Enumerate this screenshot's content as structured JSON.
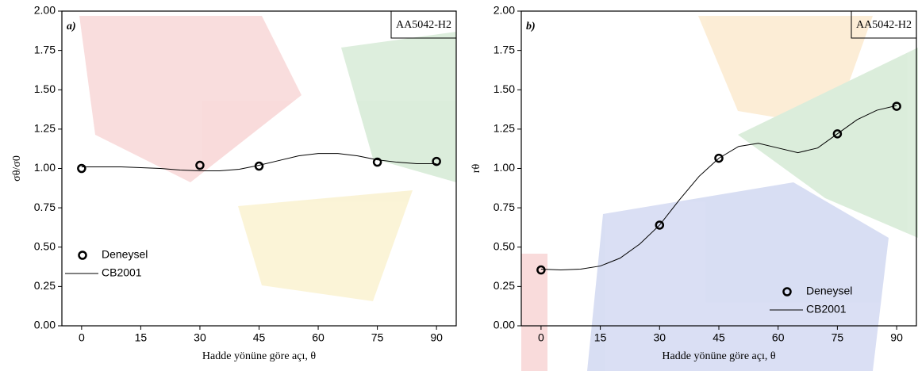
{
  "chart_data": [
    {
      "type": "line",
      "panel_label": "a)",
      "annotation": "AA5042-H2",
      "xlabel": "Hadde yönüne göre açı, θ",
      "ylabel": "σθ/σ0",
      "xlim": [
        -5,
        95
      ],
      "ylim": [
        0,
        2
      ],
      "xticks": [
        0,
        15,
        30,
        45,
        60,
        75,
        90
      ],
      "yticks": [
        {
          "value": 0,
          "label": "0.00"
        },
        {
          "value": 0.25,
          "label": "0.25"
        },
        {
          "value": 0.5,
          "label": "0.50"
        },
        {
          "value": 0.75,
          "label": "0.75"
        },
        {
          "value": 1,
          "label": "1.00"
        },
        {
          "value": 1.25,
          "label": "1.25"
        },
        {
          "value": 1.5,
          "label": "1.50"
        },
        {
          "value": 1.75,
          "label": "1.75"
        },
        {
          "value": 2,
          "label": "2.00"
        }
      ],
      "legend": "lower left",
      "series": [
        {
          "name": "Deneysel",
          "style": "markers",
          "color": "#000000",
          "x": [
            0,
            30,
            45,
            75,
            90
          ],
          "values": [
            1.0,
            1.02,
            1.015,
            1.04,
            1.045
          ]
        },
        {
          "name": "CB2001",
          "style": "line",
          "color": "#000000",
          "x": [
            0,
            5,
            10,
            15,
            20,
            25,
            30,
            35,
            40,
            45,
            50,
            55,
            60,
            65,
            70,
            75,
            80,
            85,
            90
          ],
          "values": [
            1.01,
            1.01,
            1.01,
            1.005,
            1.0,
            0.99,
            0.985,
            0.985,
            0.995,
            1.02,
            1.05,
            1.08,
            1.095,
            1.095,
            1.08,
            1.055,
            1.04,
            1.03,
            1.03
          ]
        }
      ]
    },
    {
      "type": "line",
      "panel_label": "b)",
      "annotation": "AA5042-H2",
      "xlabel": "Hadde yönüne göre açı, θ",
      "ylabel": "rθ",
      "xlim": [
        -5,
        95
      ],
      "ylim": [
        0,
        2
      ],
      "xticks": [
        0,
        15,
        30,
        45,
        60,
        75,
        90
      ],
      "yticks": [
        {
          "value": 0,
          "label": "0.00"
        },
        {
          "value": 0.25,
          "label": "0.25"
        },
        {
          "value": 0.5,
          "label": "0.50"
        },
        {
          "value": 0.75,
          "label": "0.75"
        },
        {
          "value": 1,
          "label": "1.00"
        },
        {
          "value": 1.25,
          "label": "1.25"
        },
        {
          "value": 1.5,
          "label": "1.50"
        },
        {
          "value": 1.75,
          "label": "1.75"
        },
        {
          "value": 2,
          "label": "2.00"
        }
      ],
      "legend": "lower right",
      "series": [
        {
          "name": "Deneysel",
          "style": "markers",
          "color": "#000000",
          "x": [
            0,
            30,
            45,
            75,
            90
          ],
          "values": [
            0.355,
            0.64,
            1.065,
            1.22,
            1.395
          ]
        },
        {
          "name": "CB2001",
          "style": "line",
          "color": "#000000",
          "x": [
            0,
            5,
            10,
            15,
            20,
            25,
            30,
            35,
            40,
            45,
            50,
            55,
            60,
            65,
            70,
            75,
            80,
            85,
            90
          ],
          "values": [
            0.36,
            0.355,
            0.36,
            0.38,
            0.43,
            0.52,
            0.64,
            0.8,
            0.95,
            1.065,
            1.14,
            1.16,
            1.13,
            1.1,
            1.13,
            1.22,
            1.31,
            1.37,
            1.4
          ]
        }
      ]
    }
  ]
}
